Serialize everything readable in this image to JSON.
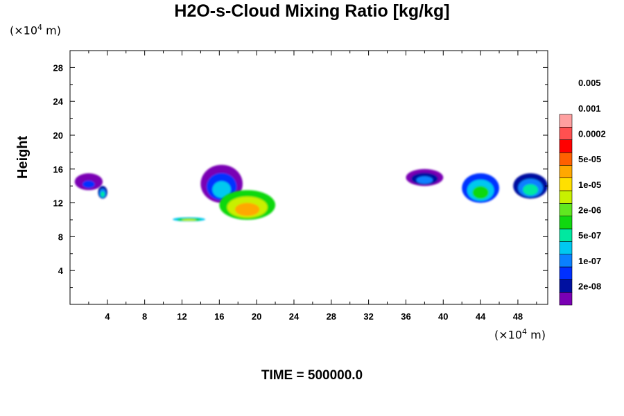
{
  "chart_data": {
    "type": "heatmap",
    "title": "H2O-s-Cloud Mixing Ratio [kg/kg]",
    "ylabel": "Height",
    "x_unit": {
      "prefix": "(×10",
      "exp": "4",
      "suffix": " m)"
    },
    "y_unit": {
      "prefix": "(×10",
      "exp": "4",
      "suffix": " m)"
    },
    "xlim": [
      0,
      51.2
    ],
    "ylim": [
      0,
      30
    ],
    "x_ticks": [
      "4",
      "8",
      "12",
      "16",
      "20",
      "24",
      "28",
      "32",
      "36",
      "40",
      "44",
      "48"
    ],
    "x_tick_values": [
      4,
      8,
      12,
      16,
      20,
      24,
      28,
      32,
      36,
      40,
      44,
      48
    ],
    "y_ticks": [
      "4",
      "8",
      "12",
      "16",
      "20",
      "24",
      "28"
    ],
    "y_tick_values": [
      4,
      8,
      12,
      16,
      20,
      24,
      28
    ],
    "colorbar": {
      "labels": [
        "2e-08",
        "1e-07",
        "5e-07",
        "2e-06",
        "1e-05",
        "5e-05",
        "0.0002",
        "0.001",
        "0.005"
      ],
      "colors": [
        "#7a00b4",
        "#0010a0",
        "#0030ff",
        "#0a80ff",
        "#00c8f0",
        "#00e8a0",
        "#10d810",
        "#60e820",
        "#c8f000",
        "#ffe000",
        "#ffa800",
        "#ff6000",
        "#ff0000",
        "#ff5050",
        "#ffa0a0"
      ]
    },
    "cloud_regions": [
      {
        "x": [
          0.5,
          3.5
        ],
        "y": [
          13.5,
          15.5
        ],
        "level": 2
      },
      {
        "x": [
          3.0,
          4.0
        ],
        "y": [
          12.5,
          14.0
        ],
        "level": 5
      },
      {
        "x": [
          11.0,
          14.5
        ],
        "y": [
          9.8,
          10.3
        ],
        "level": 8
      },
      {
        "x": [
          14.0,
          18.5
        ],
        "y": [
          12.0,
          16.5
        ],
        "level": 4
      },
      {
        "x": [
          16.0,
          22.0
        ],
        "y": [
          10.0,
          13.5
        ],
        "level": 10
      },
      {
        "x": [
          36.0,
          40.0
        ],
        "y": [
          14.0,
          16.0
        ],
        "level": 3
      },
      {
        "x": [
          42.0,
          46.0
        ],
        "y": [
          12.0,
          15.5
        ],
        "level": 6
      },
      {
        "x": [
          47.5,
          51.2
        ],
        "y": [
          12.5,
          15.5
        ],
        "level": 5
      }
    ],
    "time_label": "TIME = 500000.0"
  }
}
